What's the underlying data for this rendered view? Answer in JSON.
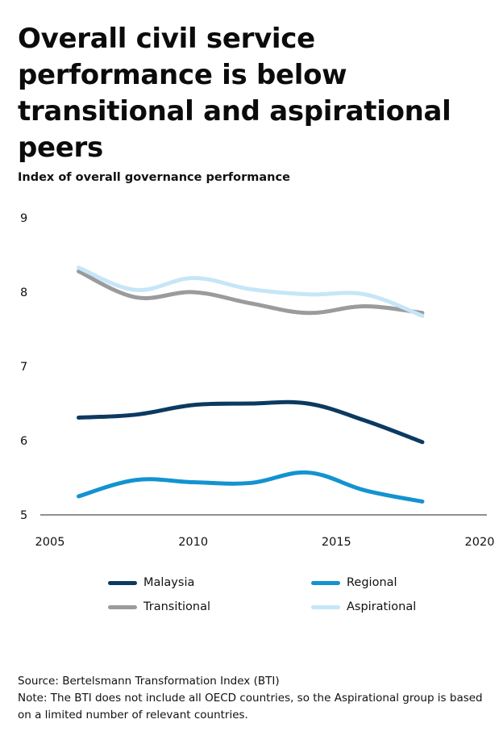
{
  "title": "Overall civil service performance is below transitional and aspirational peers",
  "subtitle": "Index of overall governance performance",
  "chart_data": {
    "type": "line",
    "title": "Overall civil service performance is below transitional and aspirational peers",
    "ylabel": "Index of overall governance performance",
    "xlabel": "",
    "xlim": [
      2005,
      2020
    ],
    "ylim": [
      5,
      9
    ],
    "x_ticks": [
      2005,
      2010,
      2015,
      2020
    ],
    "y_ticks": [
      9,
      8,
      7,
      6,
      5
    ],
    "grid": false,
    "legend_position": "bottom",
    "x": [
      2006,
      2008,
      2010,
      2012,
      2014,
      2016,
      2018
    ],
    "series": [
      {
        "name": "Malaysia",
        "color": "#0b3a61",
        "values": [
          6.31,
          6.35,
          6.48,
          6.5,
          6.5,
          6.27,
          5.98
        ]
      },
      {
        "name": "Regional",
        "color": "#1393d0",
        "values": [
          5.25,
          5.47,
          5.44,
          5.43,
          5.57,
          5.33,
          5.18
        ]
      },
      {
        "name": "Transitional",
        "color": "#9b9b9b",
        "values": [
          8.28,
          7.93,
          8.0,
          7.85,
          7.72,
          7.81,
          7.72
        ]
      },
      {
        "name": "Aspirational",
        "color": "#c6e6f8",
        "values": [
          8.33,
          8.03,
          8.19,
          8.04,
          7.97,
          7.97,
          7.68
        ]
      }
    ]
  },
  "source": "Source: Bertelsmann Transformation Index (BTI)",
  "note": "Note: The BTI does not include all OECD countries, so the Aspirational group is based on a limited number of relevant countries."
}
